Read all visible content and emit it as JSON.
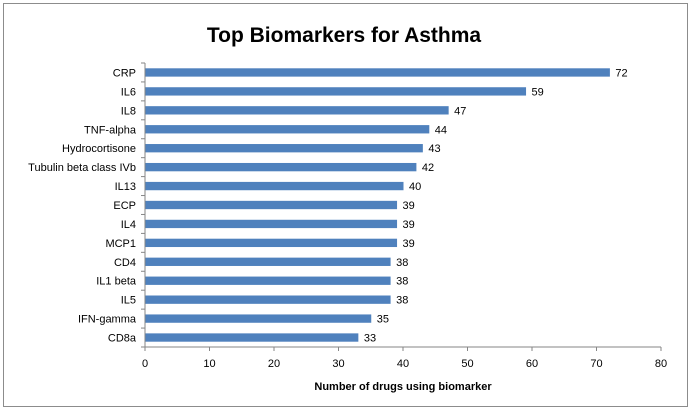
{
  "chart_data": {
    "type": "bar",
    "orientation": "horizontal",
    "title": "Top Biomarkers for Asthma",
    "xlabel": "Number of drugs using biomarker",
    "ylabel": "",
    "categories": [
      "CRP",
      "IL6",
      "IL8",
      "TNF-alpha",
      "Hydrocortisone",
      "Tubulin beta class IVb",
      "IL13",
      "ECP",
      "IL4",
      "MCP1",
      "CD4",
      "IL1 beta",
      "IL5",
      "IFN-gamma",
      "CD8a"
    ],
    "values": [
      72,
      59,
      47,
      44,
      43,
      42,
      40,
      39,
      39,
      39,
      38,
      38,
      38,
      35,
      33
    ],
    "xlim": [
      0,
      80
    ],
    "xticks": [
      "0",
      "10",
      "20",
      "30",
      "40",
      "50",
      "60",
      "70",
      "80"
    ],
    "bar_color": "#4f81bd",
    "grid": false,
    "legend": "none",
    "data_labels": true
  }
}
